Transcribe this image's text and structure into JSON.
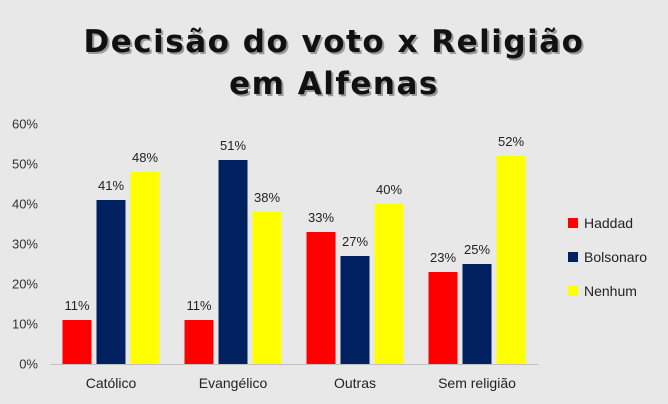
{
  "chart_data": {
    "type": "bar",
    "title": [
      "Decisão do voto x Religião",
      "em Alfenas"
    ],
    "categories": [
      "Católico",
      "Evangélico",
      "Outras",
      "Sem religião"
    ],
    "series": [
      {
        "name": "Haddad",
        "color": "#ff0000",
        "values": [
          11,
          11,
          33,
          23
        ],
        "labels": [
          "11%",
          "11%",
          "33%",
          "23%"
        ]
      },
      {
        "name": "Bolsonaro",
        "color": "#002060",
        "values": [
          41,
          51,
          27,
          25
        ],
        "labels": [
          "41%",
          "51%",
          "27%",
          "25%"
        ]
      },
      {
        "name": "Nenhum",
        "color": "#ffff00",
        "values": [
          48,
          38,
          40,
          52
        ],
        "labels": [
          "48%",
          "38%",
          "40%",
          "52%"
        ]
      }
    ],
    "yticks": [
      "0%",
      "10%",
      "20%",
      "30%",
      "40%",
      "50%",
      "60%"
    ],
    "ylim": [
      0,
      60
    ],
    "grid": false,
    "legend": "right"
  }
}
